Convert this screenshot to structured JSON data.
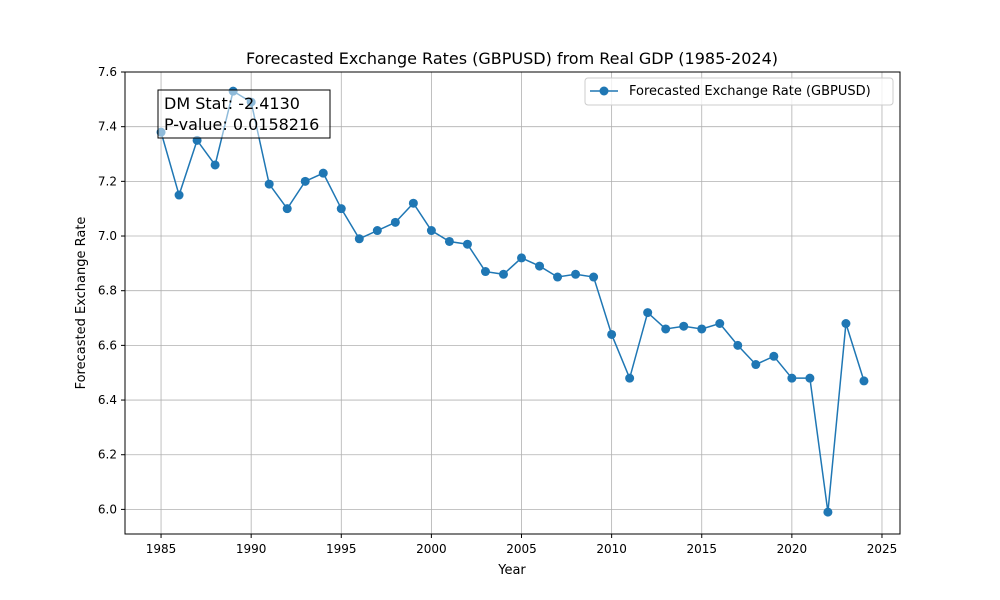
{
  "chart_data": {
    "type": "line",
    "title": "Forecasted Exchange Rates (GBPUSD) from Real GDP (1985-2024)",
    "xlabel": "Year",
    "ylabel": "Forecasted Exchange Rate",
    "xlim": [
      1983,
      2026
    ],
    "ylim": [
      5.91,
      7.6
    ],
    "xticks": [
      1985,
      1990,
      1995,
      2000,
      2005,
      2010,
      2015,
      2020,
      2025
    ],
    "yticks": [
      6.0,
      6.2,
      6.4,
      6.6,
      6.8,
      7.0,
      7.2,
      7.4,
      7.6
    ],
    "grid": true,
    "legend_position": "top-right",
    "color": "#1f77b4",
    "series": [
      {
        "name": "Forecasted Exchange Rate (GBPUSD)",
        "x": [
          1985,
          1986,
          1987,
          1988,
          1989,
          1990,
          1991,
          1992,
          1993,
          1994,
          1995,
          1996,
          1997,
          1998,
          1999,
          2000,
          2001,
          2002,
          2003,
          2004,
          2005,
          2006,
          2007,
          2008,
          2009,
          2010,
          2011,
          2012,
          2013,
          2014,
          2015,
          2016,
          2017,
          2018,
          2019,
          2020,
          2021,
          2022,
          2023,
          2024
        ],
        "values": [
          7.38,
          7.15,
          7.35,
          7.26,
          7.53,
          7.49,
          7.19,
          7.1,
          7.2,
          7.23,
          7.1,
          6.99,
          7.02,
          7.05,
          7.12,
          7.02,
          6.98,
          6.97,
          6.87,
          6.86,
          6.92,
          6.89,
          6.85,
          6.86,
          6.85,
          6.64,
          6.48,
          6.72,
          6.66,
          6.67,
          6.66,
          6.68,
          6.6,
          6.53,
          6.56,
          6.48,
          6.48,
          5.99,
          6.68,
          6.47
        ]
      }
    ],
    "annotation": {
      "line1": "DM Stat: -2.4130",
      "line2": "P-value: 0.0158216"
    }
  }
}
